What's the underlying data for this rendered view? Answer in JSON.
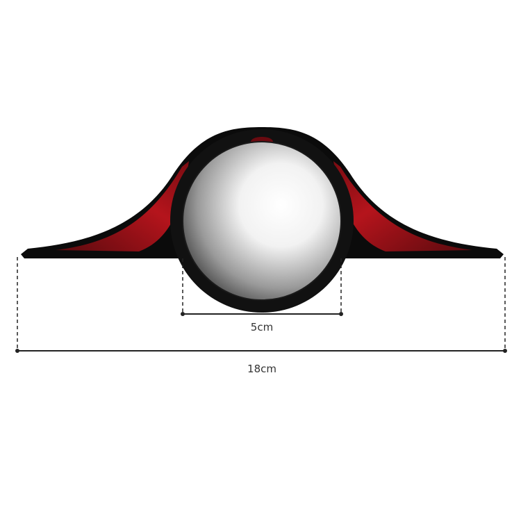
{
  "product": {
    "name": "",
    "colors": {
      "housing": "#0a0a0a",
      "accent": "#a3121a",
      "mirror": "#d8d8d8"
    }
  },
  "dimensions": {
    "inner_width_label": "5cm",
    "total_width_label": "18cm"
  }
}
